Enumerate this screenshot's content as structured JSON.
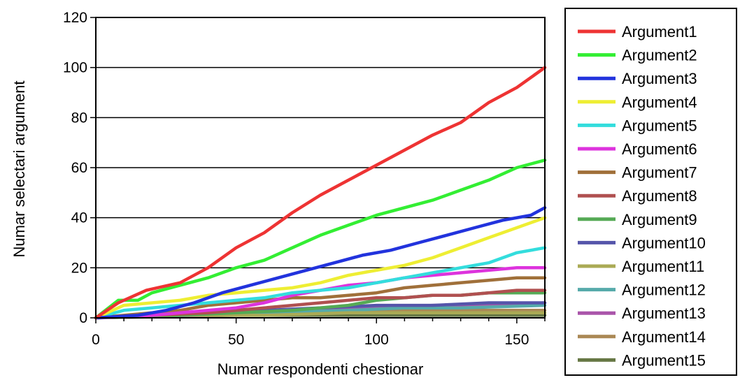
{
  "chart_data": {
    "type": "line",
    "title": "",
    "xlabel": "Numar respondenti chestionar",
    "ylabel": "Numar selectari argument",
    "xlim": [
      0,
      160
    ],
    "ylim": [
      0,
      120
    ],
    "x_ticks": [
      "0",
      "50",
      "100",
      "150"
    ],
    "y_ticks": [
      "0",
      "20",
      "40",
      "60",
      "80",
      "100",
      "120"
    ],
    "grid": "horizontal",
    "legend_position": "right",
    "series": [
      {
        "name": "Argument1",
        "color": "#ee3333",
        "points": [
          [
            0,
            0
          ],
          [
            8,
            6
          ],
          [
            18,
            11
          ],
          [
            30,
            14
          ],
          [
            40,
            20
          ],
          [
            50,
            28
          ],
          [
            60,
            34
          ],
          [
            70,
            42
          ],
          [
            80,
            49
          ],
          [
            90,
            55
          ],
          [
            100,
            61
          ],
          [
            110,
            67
          ],
          [
            120,
            73
          ],
          [
            130,
            78
          ],
          [
            140,
            86
          ],
          [
            150,
            92
          ],
          [
            160,
            100
          ]
        ]
      },
      {
        "name": "Argument2",
        "color": "#33ee33",
        "points": [
          [
            0,
            0
          ],
          [
            8,
            7
          ],
          [
            15,
            7
          ],
          [
            20,
            10
          ],
          [
            30,
            13
          ],
          [
            40,
            16
          ],
          [
            50,
            20
          ],
          [
            60,
            23
          ],
          [
            70,
            28
          ],
          [
            80,
            33
          ],
          [
            90,
            37
          ],
          [
            100,
            41
          ],
          [
            110,
            44
          ],
          [
            120,
            47
          ],
          [
            130,
            51
          ],
          [
            140,
            55
          ],
          [
            150,
            60
          ],
          [
            160,
            63
          ]
        ]
      },
      {
        "name": "Argument3",
        "color": "#2233dd",
        "points": [
          [
            0,
            0
          ],
          [
            15,
            1
          ],
          [
            25,
            3
          ],
          [
            35,
            6
          ],
          [
            45,
            10
          ],
          [
            55,
            13
          ],
          [
            65,
            16
          ],
          [
            75,
            19
          ],
          [
            85,
            22
          ],
          [
            95,
            25
          ],
          [
            105,
            27
          ],
          [
            115,
            30
          ],
          [
            125,
            33
          ],
          [
            135,
            36
          ],
          [
            145,
            39
          ],
          [
            155,
            41
          ],
          [
            160,
            44
          ]
        ]
      },
      {
        "name": "Argument4",
        "color": "#eeee33",
        "points": [
          [
            0,
            0
          ],
          [
            10,
            5
          ],
          [
            20,
            6
          ],
          [
            30,
            7
          ],
          [
            40,
            9
          ],
          [
            50,
            10
          ],
          [
            60,
            11
          ],
          [
            70,
            12
          ],
          [
            80,
            14
          ],
          [
            90,
            17
          ],
          [
            100,
            19
          ],
          [
            110,
            21
          ],
          [
            120,
            24
          ],
          [
            130,
            28
          ],
          [
            140,
            32
          ],
          [
            150,
            36
          ],
          [
            160,
            40
          ]
        ]
      },
      {
        "name": "Argument5",
        "color": "#33dddd",
        "points": [
          [
            0,
            0
          ],
          [
            10,
            3
          ],
          [
            20,
            4
          ],
          [
            30,
            5
          ],
          [
            40,
            6
          ],
          [
            50,
            7
          ],
          [
            60,
            8
          ],
          [
            70,
            10
          ],
          [
            80,
            11
          ],
          [
            90,
            12
          ],
          [
            100,
            14
          ],
          [
            110,
            16
          ],
          [
            120,
            18
          ],
          [
            130,
            20
          ],
          [
            140,
            22
          ],
          [
            150,
            26
          ],
          [
            160,
            28
          ]
        ]
      },
      {
        "name": "Argument6",
        "color": "#dd33dd",
        "points": [
          [
            0,
            0
          ],
          [
            20,
            1
          ],
          [
            30,
            2
          ],
          [
            40,
            3
          ],
          [
            50,
            4
          ],
          [
            60,
            6
          ],
          [
            70,
            9
          ],
          [
            80,
            11
          ],
          [
            90,
            13
          ],
          [
            100,
            14
          ],
          [
            110,
            16
          ],
          [
            120,
            17
          ],
          [
            130,
            18
          ],
          [
            140,
            19
          ],
          [
            150,
            20
          ],
          [
            160,
            20
          ]
        ]
      },
      {
        "name": "Argument7",
        "color": "#a0703a",
        "points": [
          [
            0,
            0
          ],
          [
            20,
            2
          ],
          [
            30,
            3
          ],
          [
            40,
            5
          ],
          [
            50,
            6
          ],
          [
            60,
            7
          ],
          [
            70,
            8
          ],
          [
            80,
            8
          ],
          [
            90,
            9
          ],
          [
            100,
            10
          ],
          [
            110,
            12
          ],
          [
            120,
            13
          ],
          [
            130,
            14
          ],
          [
            140,
            15
          ],
          [
            150,
            16
          ],
          [
            160,
            16
          ]
        ]
      },
      {
        "name": "Argument8",
        "color": "#b05050",
        "points": [
          [
            0,
            0
          ],
          [
            20,
            1
          ],
          [
            40,
            2
          ],
          [
            60,
            4
          ],
          [
            70,
            5
          ],
          [
            80,
            6
          ],
          [
            90,
            7
          ],
          [
            100,
            8
          ],
          [
            110,
            8
          ],
          [
            120,
            9
          ],
          [
            130,
            9
          ],
          [
            140,
            10
          ],
          [
            150,
            11
          ],
          [
            160,
            11
          ]
        ]
      },
      {
        "name": "Argument9",
        "color": "#55aa55",
        "points": [
          [
            0,
            0
          ],
          [
            30,
            1
          ],
          [
            50,
            2
          ],
          [
            70,
            3
          ],
          [
            90,
            5
          ],
          [
            100,
            7
          ],
          [
            110,
            8
          ],
          [
            120,
            9
          ],
          [
            130,
            9
          ],
          [
            140,
            10
          ],
          [
            150,
            10
          ],
          [
            160,
            10
          ]
        ]
      },
      {
        "name": "Argument10",
        "color": "#5555aa",
        "points": [
          [
            0,
            0
          ],
          [
            20,
            1
          ],
          [
            40,
            2
          ],
          [
            60,
            3
          ],
          [
            80,
            4
          ],
          [
            100,
            5
          ],
          [
            120,
            5
          ],
          [
            140,
            6
          ],
          [
            160,
            6
          ]
        ]
      },
      {
        "name": "Argument11",
        "color": "#aaaa55",
        "points": [
          [
            0,
            0
          ],
          [
            30,
            1
          ],
          [
            60,
            1
          ],
          [
            90,
            2
          ],
          [
            110,
            2
          ],
          [
            130,
            2
          ],
          [
            160,
            2
          ]
        ]
      },
      {
        "name": "Argument12",
        "color": "#55aaaa",
        "points": [
          [
            0,
            0
          ],
          [
            30,
            1
          ],
          [
            60,
            2
          ],
          [
            90,
            3
          ],
          [
            110,
            4
          ],
          [
            130,
            4
          ],
          [
            160,
            5
          ]
        ]
      },
      {
        "name": "Argument13",
        "color": "#aa55aa",
        "points": [
          [
            0,
            0
          ],
          [
            40,
            1
          ],
          [
            70,
            3
          ],
          [
            100,
            4
          ],
          [
            120,
            5
          ],
          [
            140,
            5
          ],
          [
            160,
            6
          ]
        ]
      },
      {
        "name": "Argument14",
        "color": "#aa8855",
        "points": [
          [
            0,
            0
          ],
          [
            40,
            1
          ],
          [
            80,
            2
          ],
          [
            110,
            3
          ],
          [
            130,
            3
          ],
          [
            160,
            3
          ]
        ]
      },
      {
        "name": "Argument15",
        "color": "#667744",
        "points": [
          [
            0,
            0
          ],
          [
            50,
            1
          ],
          [
            100,
            1
          ],
          [
            130,
            1
          ],
          [
            160,
            1
          ]
        ]
      }
    ]
  }
}
